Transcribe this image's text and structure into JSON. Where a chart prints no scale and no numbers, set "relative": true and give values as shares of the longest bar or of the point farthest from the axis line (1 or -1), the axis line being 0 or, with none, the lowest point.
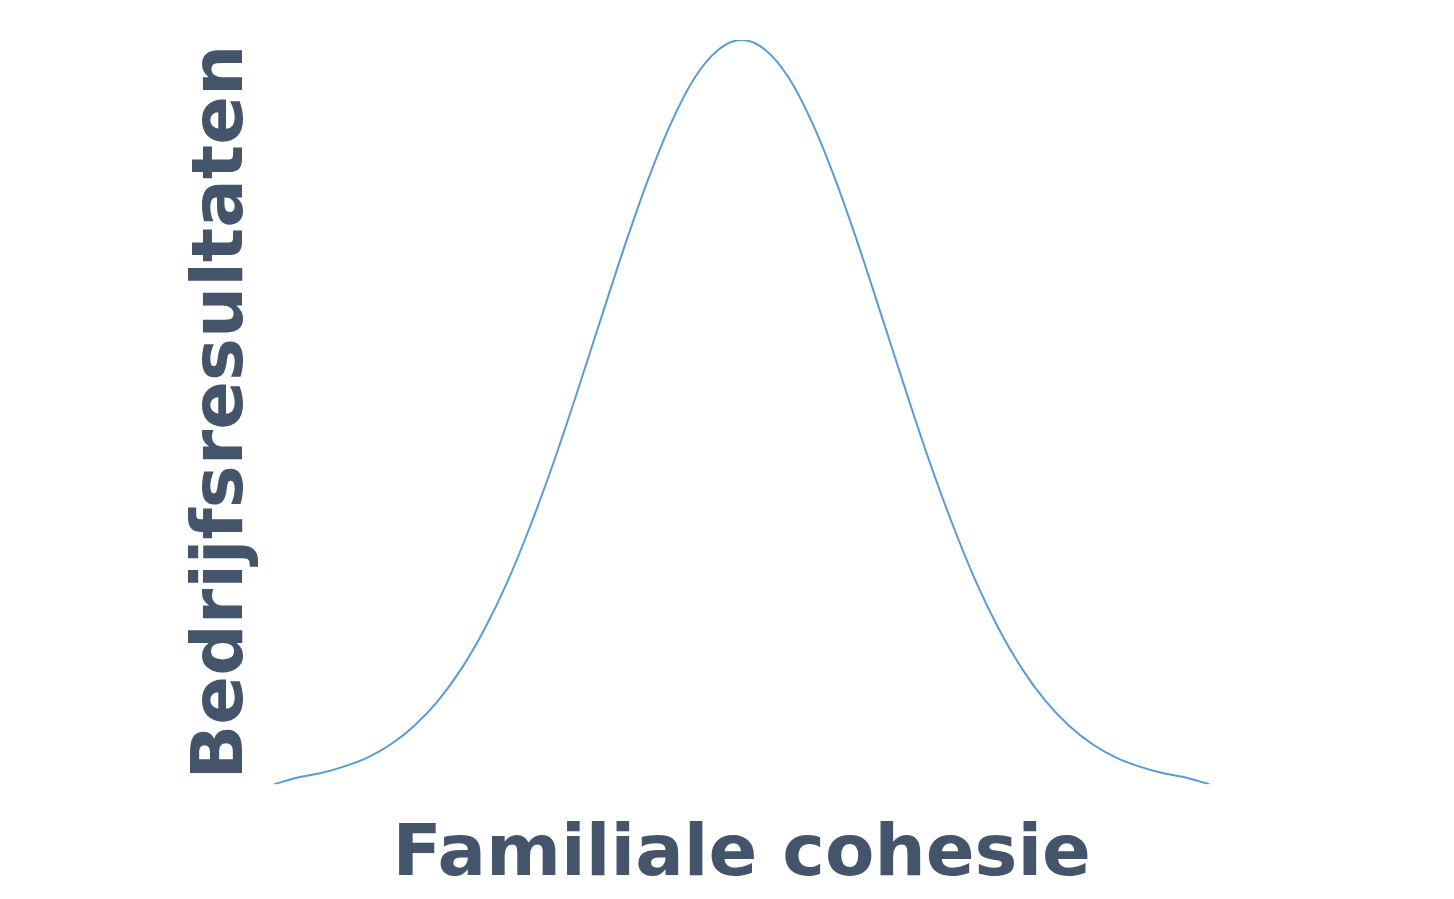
{
  "chart_data": {
    "type": "line",
    "xlabel": "Familiale cohesie",
    "ylabel": "Bedrijfsresultaten",
    "relative": true,
    "marker": "none",
    "categories": [
      null,
      null,
      null,
      null,
      null,
      null,
      null,
      null,
      null,
      null,
      null,
      null,
      null,
      null,
      null,
      null,
      null,
      null,
      null,
      null,
      null,
      null,
      null,
      null,
      null,
      null,
      null,
      null,
      null,
      null,
      null,
      null,
      null,
      null,
      null,
      null,
      null,
      null,
      null,
      null,
      null
    ],
    "series": [
      {
        "color": "#5b9bd5",
        "values": [
          0,
          0.009,
          0.015,
          0.024,
          0.036,
          0.054,
          0.079,
          0.112,
          0.155,
          0.209,
          0.274,
          0.351,
          0.437,
          0.531,
          0.628,
          0.724,
          0.813,
          0.89,
          0.95,
          0.987,
          1,
          0.987,
          0.95,
          0.89,
          0.813,
          0.724,
          0.628,
          0.531,
          0.437,
          0.351,
          0.274,
          0.209,
          0.155,
          0.112,
          0.079,
          0.054,
          0.036,
          0.024,
          0.015,
          0.009,
          0
        ]
      }
    ]
  }
}
